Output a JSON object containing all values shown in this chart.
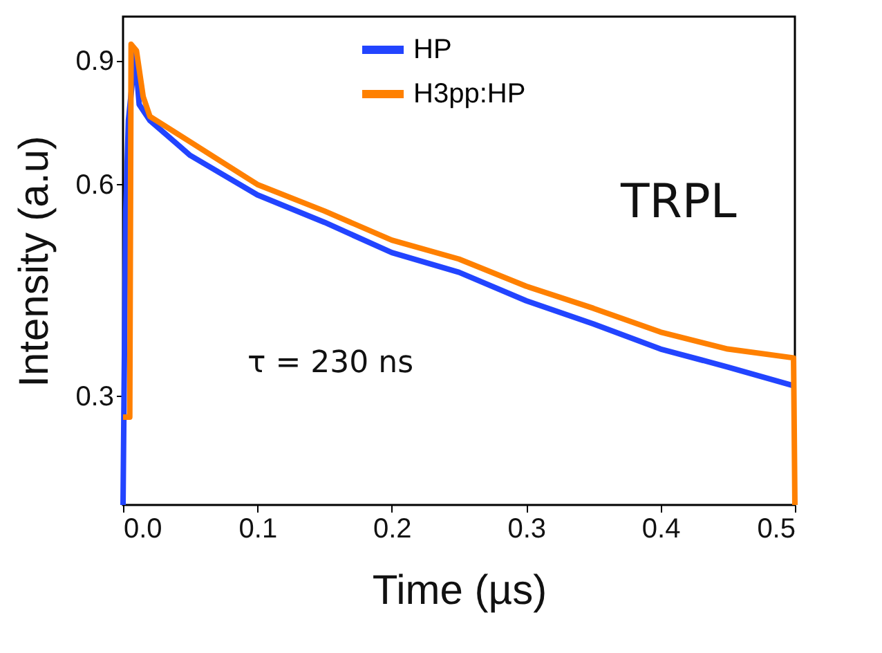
{
  "chart_data": {
    "type": "line",
    "xlabel": "Time (µs)",
    "ylabel": "Intensity (a.u)",
    "annotations": [
      "TRPL",
      "τ = 230 ns"
    ],
    "xlim": [
      0,
      0.5
    ],
    "xticks": [
      {
        "value": 0,
        "label": "0.0"
      },
      0.1,
      0.2,
      0.3,
      0.4,
      0.5
    ],
    "ylim": [
      0.21,
      1.04
    ],
    "yticks": [
      0.3,
      0.6,
      0.9
    ],
    "log": "y",
    "grid": false,
    "legend": "top",
    "line_style": "solid",
    "series": [
      {
        "name": "HP",
        "color": "#2244ff",
        "x": [
          0,
          0.002,
          0.004,
          0.009,
          0.012,
          0.02,
          0.05,
          0.1,
          0.15,
          0.2,
          0.25,
          0.3,
          0.35,
          0.4,
          0.45,
          0.5
        ],
        "values": [
          0.21,
          0.55,
          0.74,
          0.92,
          0.78,
          0.74,
          0.66,
          0.58,
          0.53,
          0.48,
          0.45,
          0.41,
          0.38,
          0.35,
          0.33,
          0.31
        ]
      },
      {
        "name": "H3pp:HP",
        "color": "#ff8000",
        "x": [
          0,
          0.005,
          0.006,
          0.01,
          0.015,
          0.02,
          0.05,
          0.1,
          0.15,
          0.2,
          0.25,
          0.3,
          0.35,
          0.4,
          0.45,
          0.499,
          0.5
        ],
        "values": [
          0.28,
          0.28,
          0.95,
          0.93,
          0.8,
          0.75,
          0.69,
          0.6,
          0.55,
          0.5,
          0.47,
          0.43,
          0.4,
          0.37,
          0.35,
          0.34,
          0.21
        ]
      }
    ]
  }
}
